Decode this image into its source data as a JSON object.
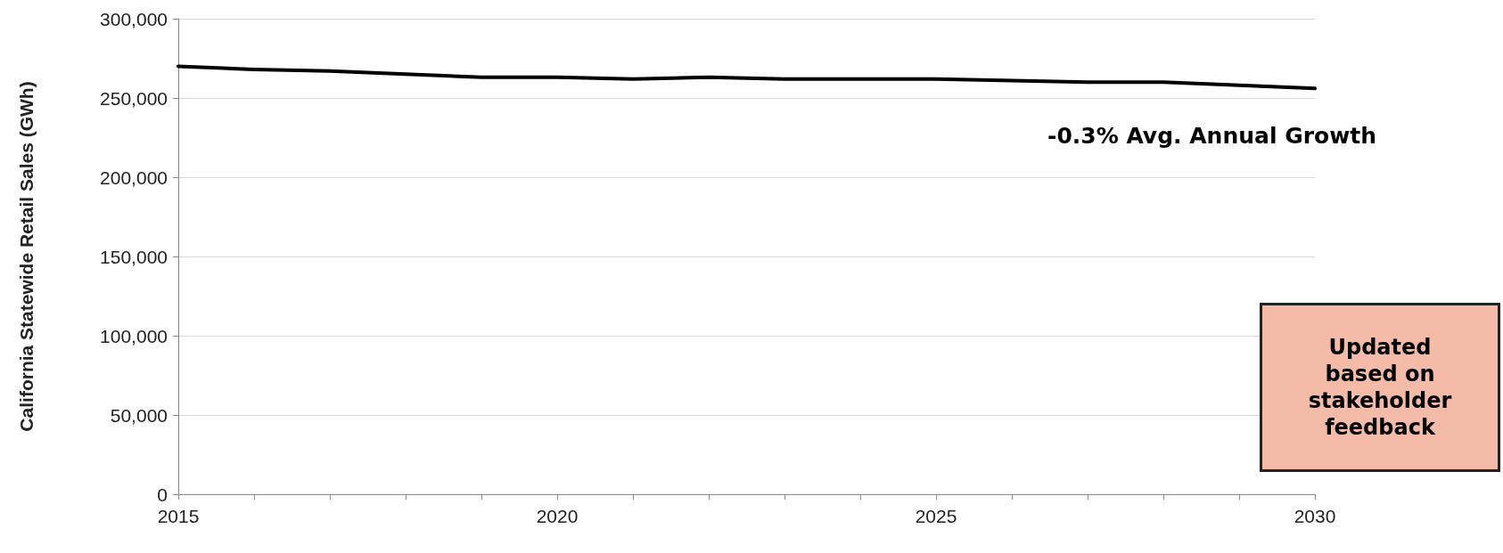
{
  "chart_data": {
    "type": "line",
    "ylabel": "California Statewide Retail Sales (GWh)",
    "x": [
      2015,
      2016,
      2017,
      2018,
      2019,
      2020,
      2021,
      2022,
      2023,
      2024,
      2025,
      2026,
      2027,
      2028,
      2029,
      2030
    ],
    "series": [
      {
        "color": "#000000",
        "values": [
          270000,
          268000,
          267000,
          265000,
          263000,
          263000,
          262000,
          263000,
          262000,
          262000,
          262000,
          261000,
          260000,
          260000,
          258000,
          256000
        ]
      }
    ],
    "xlim": [
      2015,
      2030
    ],
    "xticks": [
      2015,
      {
        "value": 2016,
        "label": null
      },
      {
        "value": 2017,
        "label": null
      },
      {
        "value": 2018,
        "label": null
      },
      {
        "value": 2019,
        "label": null
      },
      2020,
      {
        "value": 2021,
        "label": null
      },
      {
        "value": 2022,
        "label": null
      },
      {
        "value": 2023,
        "label": null
      },
      {
        "value": 2024,
        "label": null
      },
      2025,
      {
        "value": 2026,
        "label": null
      },
      {
        "value": 2027,
        "label": null
      },
      {
        "value": 2028,
        "label": null
      },
      {
        "value": 2029,
        "label": null
      },
      2030
    ],
    "ylim": [
      0,
      300000
    ],
    "yticks": [
      0,
      {
        "value": 50000,
        "label": "50,000"
      },
      {
        "value": 100000,
        "label": "100,000"
      },
      {
        "value": 150000,
        "label": "150,000"
      },
      {
        "value": 200000,
        "label": "200,000"
      },
      {
        "value": 250000,
        "label": "250,000"
      },
      {
        "value": 300000,
        "label": "300,000"
      }
    ],
    "grid": "y",
    "marker": "none",
    "line_style": "solid",
    "annotations": [
      "-0.3% Avg. Annual Growth",
      "Updated based on stakeholder feedback"
    ]
  }
}
